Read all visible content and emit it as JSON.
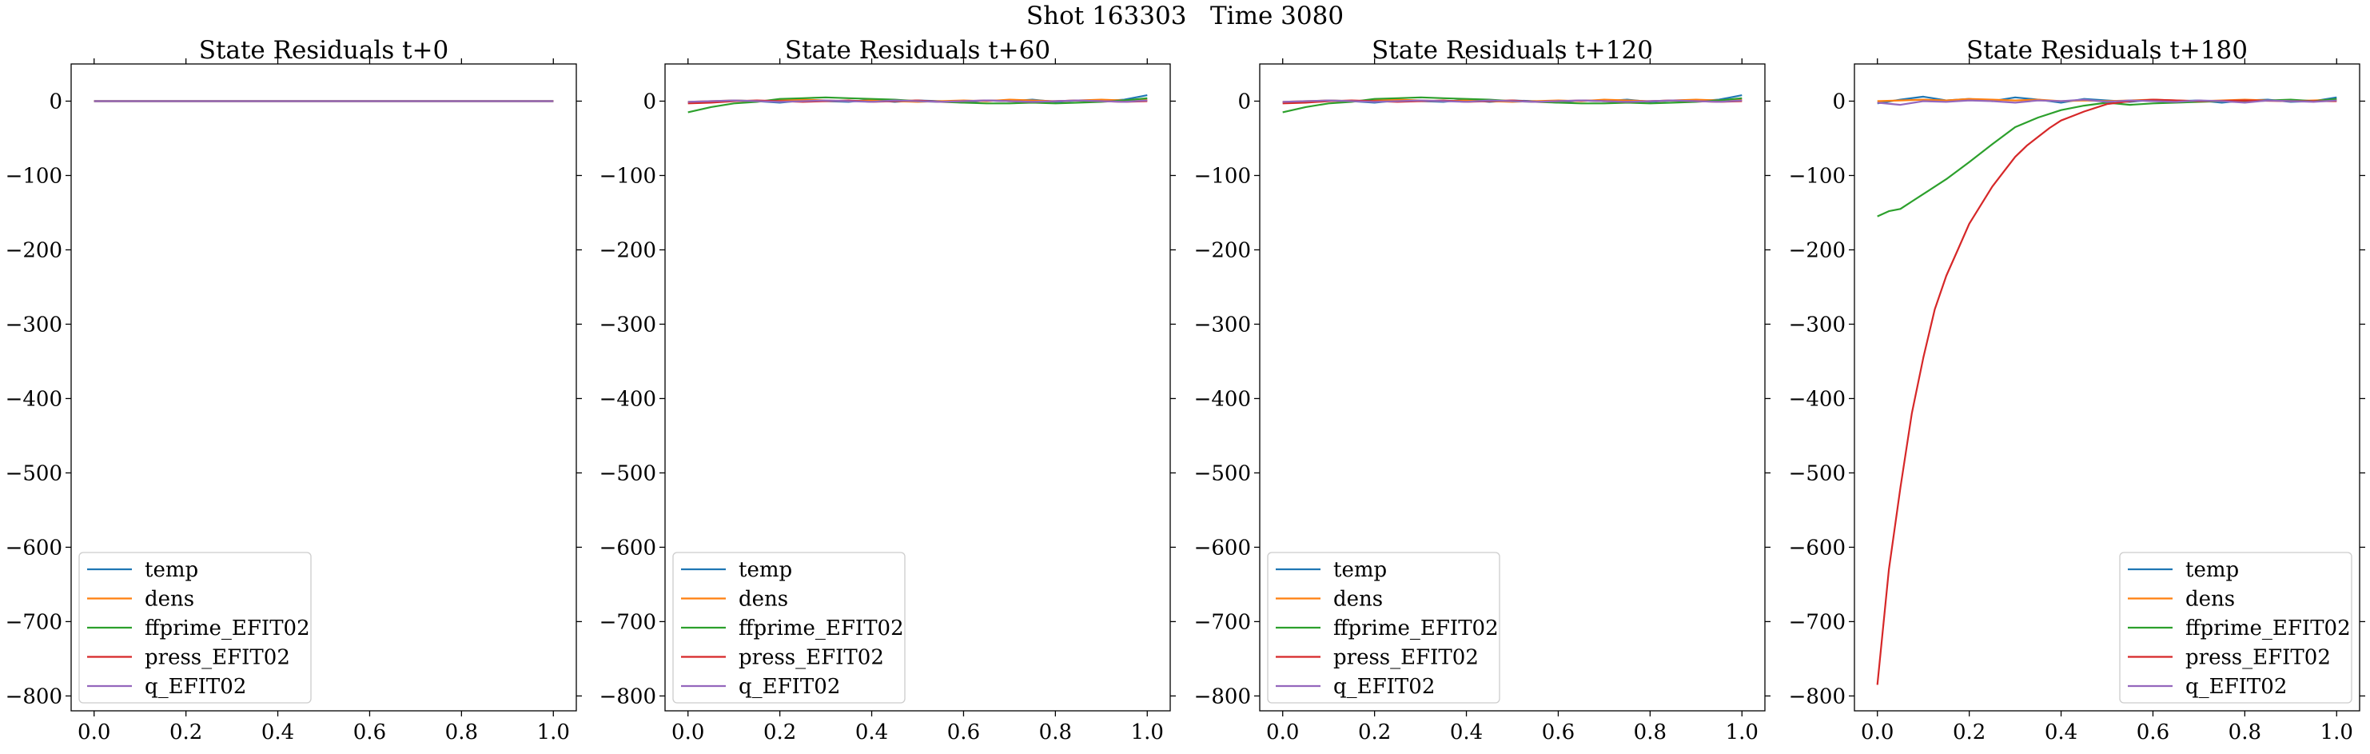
{
  "figure": {
    "suptitle": "Shot 163303   Time 3080"
  },
  "chart_data": [
    {
      "type": "line",
      "title": "State Residuals t+0",
      "xlabel": "",
      "ylabel": "",
      "xlim": [
        -0.05,
        1.05
      ],
      "ylim": [
        -820,
        50
      ],
      "xticks": [
        0.0,
        0.2,
        0.4,
        0.6,
        0.8,
        1.0
      ],
      "xtick_labels": [
        "0.0",
        "0.2",
        "0.4",
        "0.6",
        "0.8",
        "1.0"
      ],
      "yticks": [
        0,
        -100,
        -200,
        -300,
        -400,
        -500,
        -600,
        -700,
        -800
      ],
      "ytick_labels": [
        "0",
        "−100",
        "−200",
        "−300",
        "−400",
        "−500",
        "−600",
        "−700",
        "−800"
      ],
      "grid": false,
      "legend": "lower-left",
      "series": [
        {
          "name": "temp",
          "color": "#1f77b4",
          "x": [
            0.0,
            0.1,
            0.2,
            0.3,
            0.4,
            0.5,
            0.6,
            0.7,
            0.8,
            0.9,
            1.0
          ],
          "y": [
            0,
            0,
            0,
            0,
            0,
            0,
            0,
            0,
            0,
            0,
            0
          ]
        },
        {
          "name": "dens",
          "color": "#ff7f0e",
          "x": [
            0.0,
            0.1,
            0.2,
            0.3,
            0.4,
            0.5,
            0.6,
            0.7,
            0.8,
            0.9,
            1.0
          ],
          "y": [
            0,
            0,
            0,
            0,
            0,
            0,
            0,
            0,
            0,
            0,
            0
          ]
        },
        {
          "name": "ffprime_EFIT02",
          "color": "#2ca02c",
          "x": [
            0.0,
            0.1,
            0.2,
            0.3,
            0.4,
            0.5,
            0.6,
            0.7,
            0.8,
            0.9,
            1.0
          ],
          "y": [
            0,
            0,
            0,
            0,
            0,
            0,
            0,
            0,
            0,
            0,
            0
          ]
        },
        {
          "name": "press_EFIT02",
          "color": "#d62728",
          "x": [
            0.0,
            0.1,
            0.2,
            0.3,
            0.4,
            0.5,
            0.6,
            0.7,
            0.8,
            0.9,
            1.0
          ],
          "y": [
            0,
            0,
            0,
            0,
            0,
            0,
            0,
            0,
            0,
            0,
            0
          ]
        },
        {
          "name": "q_EFIT02",
          "color": "#9467bd",
          "x": [
            0.0,
            0.1,
            0.2,
            0.3,
            0.4,
            0.5,
            0.6,
            0.7,
            0.8,
            0.9,
            1.0
          ],
          "y": [
            0,
            0,
            0,
            0,
            0,
            0,
            0,
            0,
            0,
            0,
            0
          ]
        }
      ]
    },
    {
      "type": "line",
      "title": "State Residuals t+60",
      "xlabel": "",
      "ylabel": "",
      "xlim": [
        -0.05,
        1.05
      ],
      "ylim": [
        -820,
        50
      ],
      "xticks": [
        0.0,
        0.2,
        0.4,
        0.6,
        0.8,
        1.0
      ],
      "xtick_labels": [
        "0.0",
        "0.2",
        "0.4",
        "0.6",
        "0.8",
        "1.0"
      ],
      "yticks": [
        0,
        -100,
        -200,
        -300,
        -400,
        -500,
        -600,
        -700,
        -800
      ],
      "ytick_labels": [
        "0",
        "−100",
        "−200",
        "−300",
        "−400",
        "−500",
        "−600",
        "−700",
        "−800"
      ],
      "grid": false,
      "legend": "lower-left",
      "series": [
        {
          "name": "temp",
          "color": "#1f77b4",
          "x": [
            0.0,
            0.05,
            0.1,
            0.15,
            0.2,
            0.25,
            0.3,
            0.35,
            0.4,
            0.45,
            0.5,
            0.55,
            0.6,
            0.65,
            0.7,
            0.75,
            0.8,
            0.85,
            0.9,
            0.95,
            1.0
          ],
          "y": [
            -2,
            -1,
            1,
            0,
            -2,
            1,
            0,
            -1,
            2,
            -1,
            1,
            0,
            -2,
            1,
            0,
            2,
            -1,
            1,
            0,
            2,
            8
          ]
        },
        {
          "name": "dens",
          "color": "#ff7f0e",
          "x": [
            0.0,
            0.05,
            0.1,
            0.15,
            0.2,
            0.25,
            0.3,
            0.35,
            0.4,
            0.45,
            0.5,
            0.55,
            0.6,
            0.65,
            0.7,
            0.75,
            0.8,
            0.85,
            0.9,
            0.95,
            1.0
          ],
          "y": [
            -1,
            0,
            1,
            0,
            1,
            2,
            1,
            0,
            1,
            0,
            -1,
            0,
            1,
            0,
            2,
            1,
            0,
            1,
            2,
            1,
            2
          ]
        },
        {
          "name": "ffprime_EFIT02",
          "color": "#2ca02c",
          "x": [
            0.0,
            0.05,
            0.1,
            0.15,
            0.2,
            0.25,
            0.3,
            0.35,
            0.4,
            0.45,
            0.5,
            0.55,
            0.6,
            0.65,
            0.7,
            0.75,
            0.8,
            0.85,
            0.9,
            0.95,
            1.0
          ],
          "y": [
            -15,
            -8,
            -3,
            -1,
            3,
            4,
            5,
            4,
            3,
            2,
            0,
            -1,
            -2,
            -3,
            -3,
            -2,
            -3,
            -2,
            -1,
            1,
            4
          ]
        },
        {
          "name": "press_EFIT02",
          "color": "#d62728",
          "x": [
            0.0,
            0.05,
            0.1,
            0.15,
            0.2,
            0.25,
            0.3,
            0.35,
            0.4,
            0.45,
            0.5,
            0.55,
            0.6,
            0.65,
            0.7,
            0.75,
            0.8,
            0.85,
            0.9,
            0.95,
            1.0
          ],
          "y": [
            -3,
            -2,
            0,
            1,
            0,
            -1,
            0,
            1,
            -1,
            0,
            1,
            -1,
            0,
            1,
            0,
            -1,
            0,
            1,
            0,
            -1,
            0
          ]
        },
        {
          "name": "q_EFIT02",
          "color": "#9467bd",
          "x": [
            0.0,
            0.05,
            0.1,
            0.15,
            0.2,
            0.25,
            0.3,
            0.35,
            0.4,
            0.45,
            0.5,
            0.55,
            0.6,
            0.65,
            0.7,
            0.75,
            0.8,
            0.85,
            0.9,
            0.95,
            1.0
          ],
          "y": [
            -1,
            0,
            1,
            0,
            -1,
            0,
            1,
            0,
            -1,
            1,
            0,
            -1,
            0,
            1,
            0,
            -1,
            0,
            1,
            0,
            -1,
            1
          ]
        }
      ]
    },
    {
      "type": "line",
      "title": "State Residuals t+120",
      "xlabel": "",
      "ylabel": "",
      "xlim": [
        -0.05,
        1.05
      ],
      "ylim": [
        -820,
        50
      ],
      "xticks": [
        0.0,
        0.2,
        0.4,
        0.6,
        0.8,
        1.0
      ],
      "xtick_labels": [
        "0.0",
        "0.2",
        "0.4",
        "0.6",
        "0.8",
        "1.0"
      ],
      "yticks": [
        0,
        -100,
        -200,
        -300,
        -400,
        -500,
        -600,
        -700,
        -800
      ],
      "ytick_labels": [
        "0",
        "−100",
        "−200",
        "−300",
        "−400",
        "−500",
        "−600",
        "−700",
        "−800"
      ],
      "grid": false,
      "legend": "lower-left",
      "series": [
        {
          "name": "temp",
          "color": "#1f77b4",
          "x": [
            0.0,
            0.05,
            0.1,
            0.15,
            0.2,
            0.25,
            0.3,
            0.35,
            0.4,
            0.45,
            0.5,
            0.55,
            0.6,
            0.65,
            0.7,
            0.75,
            0.8,
            0.85,
            0.9,
            0.95,
            1.0
          ],
          "y": [
            -2,
            -1,
            1,
            0,
            -2,
            1,
            0,
            -1,
            2,
            -1,
            1,
            0,
            -2,
            1,
            0,
            2,
            -1,
            1,
            0,
            2,
            8
          ]
        },
        {
          "name": "dens",
          "color": "#ff7f0e",
          "x": [
            0.0,
            0.05,
            0.1,
            0.15,
            0.2,
            0.25,
            0.3,
            0.35,
            0.4,
            0.45,
            0.5,
            0.55,
            0.6,
            0.65,
            0.7,
            0.75,
            0.8,
            0.85,
            0.9,
            0.95,
            1.0
          ],
          "y": [
            -1,
            0,
            1,
            0,
            1,
            2,
            1,
            0,
            1,
            0,
            -1,
            0,
            1,
            0,
            2,
            1,
            0,
            1,
            2,
            1,
            2
          ]
        },
        {
          "name": "ffprime_EFIT02",
          "color": "#2ca02c",
          "x": [
            0.0,
            0.05,
            0.1,
            0.15,
            0.2,
            0.25,
            0.3,
            0.35,
            0.4,
            0.45,
            0.5,
            0.55,
            0.6,
            0.65,
            0.7,
            0.75,
            0.8,
            0.85,
            0.9,
            0.95,
            1.0
          ],
          "y": [
            -15,
            -8,
            -3,
            -1,
            3,
            4,
            5,
            4,
            3,
            2,
            0,
            -1,
            -2,
            -3,
            -3,
            -2,
            -3,
            -2,
            -1,
            1,
            4
          ]
        },
        {
          "name": "press_EFIT02",
          "color": "#d62728",
          "x": [
            0.0,
            0.05,
            0.1,
            0.15,
            0.2,
            0.25,
            0.3,
            0.35,
            0.4,
            0.45,
            0.5,
            0.55,
            0.6,
            0.65,
            0.7,
            0.75,
            0.8,
            0.85,
            0.9,
            0.95,
            1.0
          ],
          "y": [
            -3,
            -2,
            0,
            1,
            0,
            -1,
            0,
            1,
            -1,
            0,
            1,
            -1,
            0,
            1,
            0,
            -1,
            0,
            1,
            0,
            -1,
            0
          ]
        },
        {
          "name": "q_EFIT02",
          "color": "#9467bd",
          "x": [
            0.0,
            0.05,
            0.1,
            0.15,
            0.2,
            0.25,
            0.3,
            0.35,
            0.4,
            0.45,
            0.5,
            0.55,
            0.6,
            0.65,
            0.7,
            0.75,
            0.8,
            0.85,
            0.9,
            0.95,
            1.0
          ],
          "y": [
            -1,
            0,
            1,
            0,
            -1,
            0,
            1,
            0,
            -1,
            1,
            0,
            -1,
            0,
            1,
            0,
            -1,
            0,
            1,
            0,
            -1,
            1
          ]
        }
      ]
    },
    {
      "type": "line",
      "title": "State Residuals t+180",
      "xlabel": "",
      "ylabel": "",
      "xlim": [
        -0.05,
        1.05
      ],
      "ylim": [
        -820,
        50
      ],
      "xticks": [
        0.0,
        0.2,
        0.4,
        0.6,
        0.8,
        1.0
      ],
      "xtick_labels": [
        "0.0",
        "0.2",
        "0.4",
        "0.6",
        "0.8",
        "1.0"
      ],
      "yticks": [
        0,
        -100,
        -200,
        -300,
        -400,
        -500,
        -600,
        -700,
        -800
      ],
      "ytick_labels": [
        "0",
        "−100",
        "−200",
        "−300",
        "−400",
        "−500",
        "−600",
        "−700",
        "−800"
      ],
      "grid": false,
      "legend": "lower-right",
      "series": [
        {
          "name": "temp",
          "color": "#1f77b4",
          "x": [
            0.0,
            0.05,
            0.1,
            0.15,
            0.2,
            0.25,
            0.3,
            0.35,
            0.4,
            0.45,
            0.5,
            0.55,
            0.6,
            0.65,
            0.7,
            0.75,
            0.8,
            0.85,
            0.9,
            0.95,
            1.0
          ],
          "y": [
            -3,
            2,
            6,
            1,
            3,
            0,
            5,
            2,
            -2,
            3,
            1,
            -1,
            2,
            0,
            1,
            -2,
            1,
            2,
            -1,
            0,
            5
          ]
        },
        {
          "name": "dens",
          "color": "#ff7f0e",
          "x": [
            0.0,
            0.05,
            0.1,
            0.15,
            0.2,
            0.25,
            0.3,
            0.35,
            0.4,
            0.45,
            0.5,
            0.55,
            0.6,
            0.65,
            0.7,
            0.75,
            0.8,
            0.85,
            0.9,
            0.95,
            1.0
          ],
          "y": [
            0,
            1,
            2,
            1,
            3,
            2,
            1,
            2,
            0,
            1,
            0,
            1,
            2,
            1,
            0,
            1,
            2,
            1,
            0,
            1,
            2
          ]
        },
        {
          "name": "ffprime_EFIT02",
          "color": "#2ca02c",
          "x": [
            0.0,
            0.025,
            0.05,
            0.075,
            0.1,
            0.15,
            0.2,
            0.25,
            0.3,
            0.35,
            0.4,
            0.45,
            0.5,
            0.55,
            0.6,
            0.65,
            0.7,
            0.75,
            0.8,
            0.85,
            0.9,
            0.95,
            1.0
          ],
          "y": [
            -155,
            -148,
            -145,
            -135,
            -125,
            -105,
            -82,
            -58,
            -35,
            -22,
            -12,
            -6,
            -2,
            -5,
            -3,
            -2,
            -1,
            0,
            -1,
            1,
            2,
            0,
            3
          ]
        },
        {
          "name": "press_EFIT02",
          "color": "#d62728",
          "x": [
            0.0,
            0.025,
            0.05,
            0.075,
            0.1,
            0.125,
            0.15,
            0.175,
            0.2,
            0.225,
            0.25,
            0.275,
            0.3,
            0.325,
            0.35,
            0.375,
            0.4,
            0.425,
            0.45,
            0.5,
            0.55,
            0.6,
            0.7,
            0.8,
            0.9,
            1.0
          ],
          "y": [
            -785,
            -630,
            -520,
            -420,
            -345,
            -280,
            -235,
            -200,
            -165,
            -140,
            -115,
            -95,
            -75,
            -60,
            -48,
            -36,
            -26,
            -20,
            -14,
            -4,
            0,
            2,
            0,
            1,
            0,
            0
          ]
        },
        {
          "name": "q_EFIT02",
          "color": "#9467bd",
          "x": [
            0.0,
            0.05,
            0.1,
            0.15,
            0.2,
            0.25,
            0.3,
            0.35,
            0.4,
            0.45,
            0.5,
            0.55,
            0.6,
            0.65,
            0.7,
            0.75,
            0.8,
            0.85,
            0.9,
            0.95,
            1.0
          ],
          "y": [
            -2,
            -5,
            0,
            -1,
            1,
            0,
            -2,
            1,
            0,
            2,
            -1,
            1,
            0,
            -1,
            1,
            0,
            -2,
            1,
            0,
            -1,
            1
          ]
        }
      ]
    }
  ]
}
